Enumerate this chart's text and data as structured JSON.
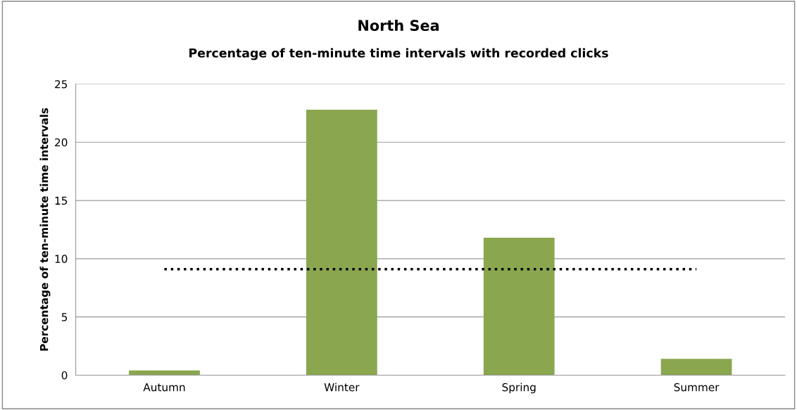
{
  "chart_data": {
    "type": "bar",
    "title": "North Sea",
    "subtitle": "Percentage of ten-minute time intervals with recorded clicks",
    "ylabel": "Percentage of ten-minute time intervals",
    "categories": [
      "Autumn",
      "Winter",
      "Spring",
      "Summer"
    ],
    "series": [
      {
        "color": "#8aa64f",
        "values": [
          0.4,
          22.8,
          11.8,
          1.4
        ]
      },
      {
        "type": "line",
        "color": "#000000",
        "line_style": "dotted",
        "values": [
          9.1,
          9.1,
          9.1,
          9.1
        ]
      }
    ],
    "ylim": [
      0,
      25
    ],
    "yticks": [
      0,
      5,
      10,
      15,
      20,
      25
    ],
    "grid": "y",
    "legend": false
  }
}
